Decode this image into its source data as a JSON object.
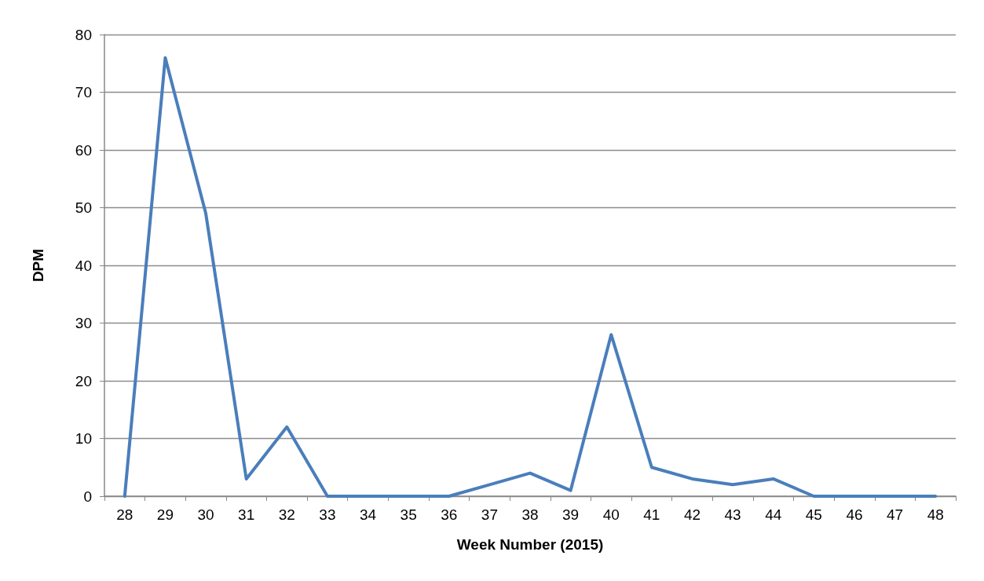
{
  "chart_data": {
    "type": "line",
    "xlabel": "Week Number (2015)",
    "ylabel": "DPM",
    "categories": [
      "28",
      "29",
      "30",
      "31",
      "32",
      "33",
      "34",
      "35",
      "36",
      "37",
      "38",
      "39",
      "40",
      "41",
      "42",
      "43",
      "44",
      "45",
      "46",
      "47",
      "48"
    ],
    "series": [
      {
        "color": "#4a7ebb",
        "values": [
          0,
          76,
          49,
          3,
          12,
          0,
          0,
          0,
          0,
          2,
          4,
          1,
          28,
          5,
          3,
          2,
          3,
          0,
          0,
          0,
          0
        ]
      }
    ],
    "ylim": [
      0,
      80
    ],
    "yticks": [
      0,
      10,
      20,
      30,
      40,
      50,
      60,
      70,
      80
    ],
    "grid": "y",
    "marker": "none",
    "line_style": "solid"
  }
}
